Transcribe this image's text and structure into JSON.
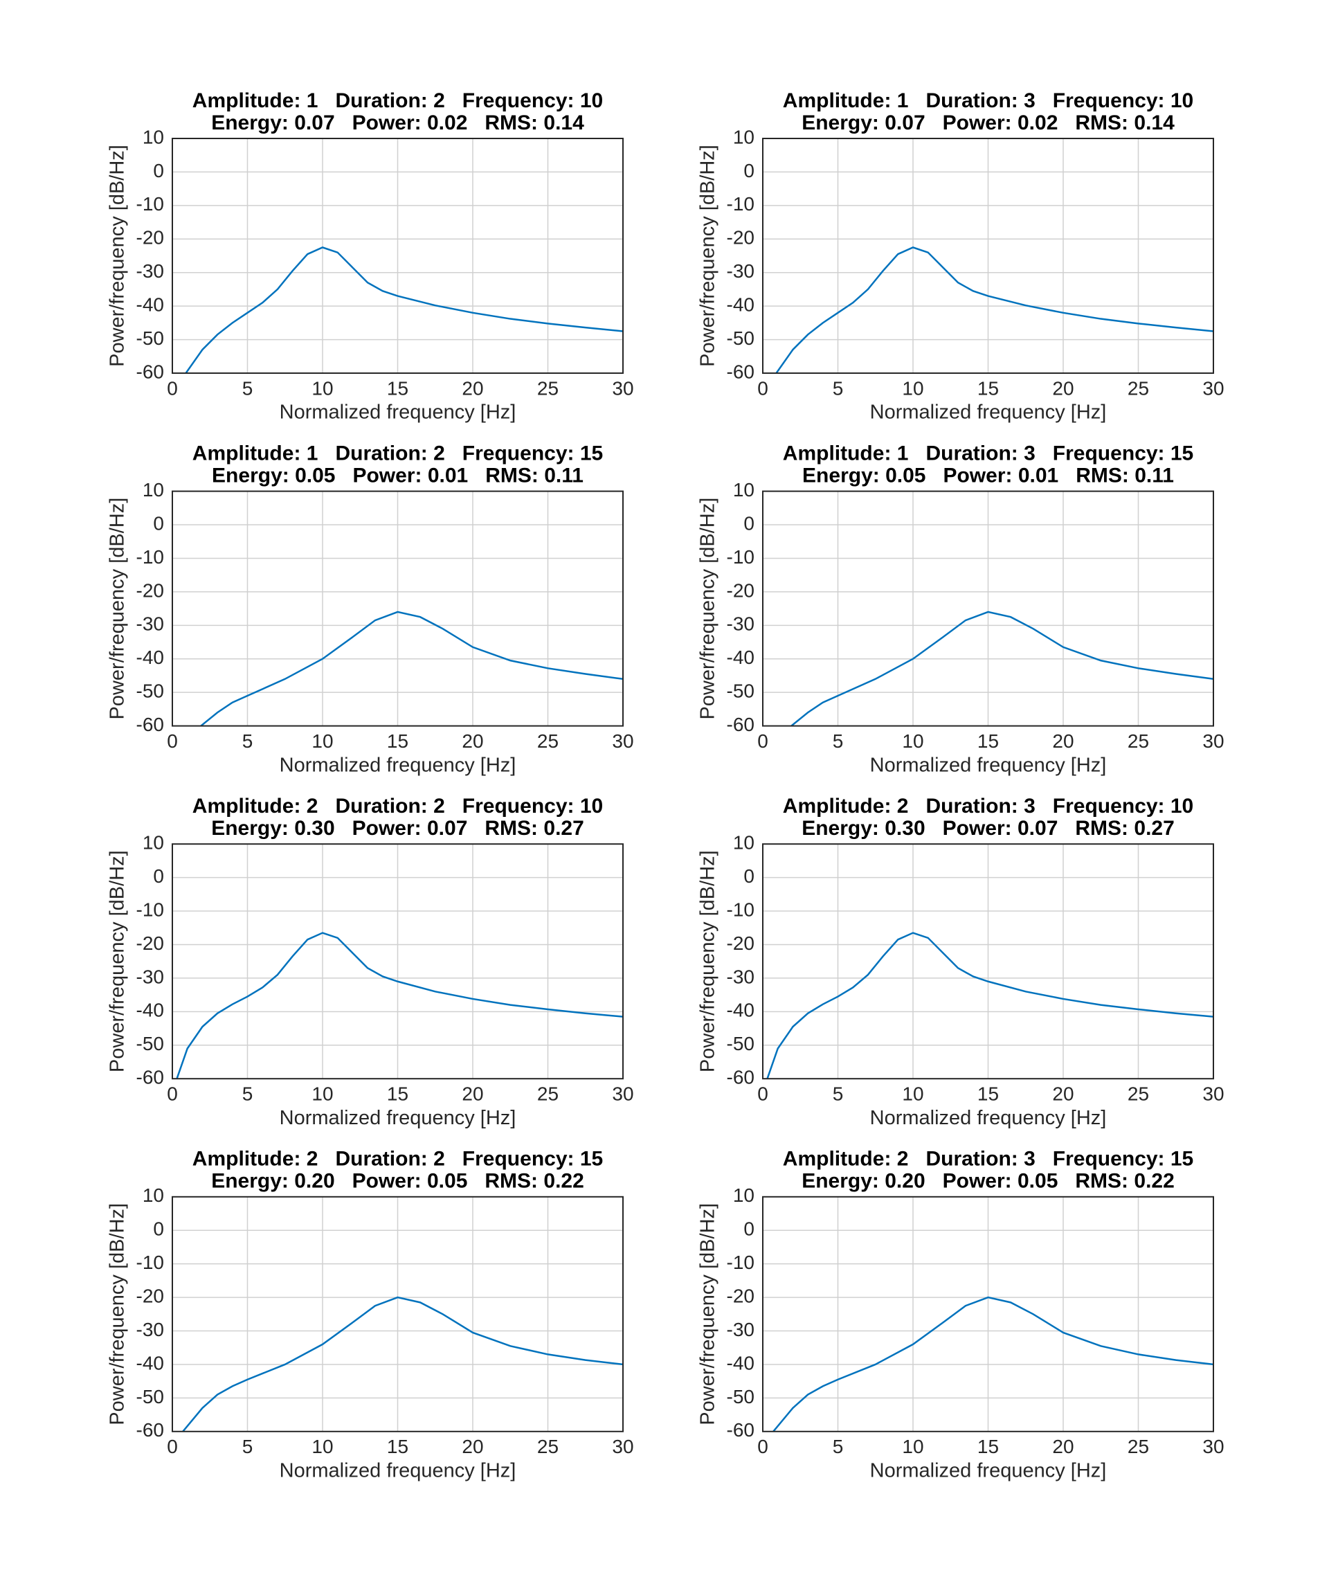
{
  "chart_data": [
    {
      "type": "line",
      "title": [
        "Amplitude: 1   Duration: 2   Frequency: 10",
        "Energy: 0.07   Power: 0.02   RMS: 0.14"
      ],
      "x_label": "Normalized frequency [Hz]",
      "y_label": "Power/frequency [dB/Hz]",
      "xlim": [
        0,
        30
      ],
      "ylim": [
        -60,
        10
      ],
      "xticks": [
        0,
        5,
        10,
        15,
        20,
        25,
        30
      ],
      "yticks": [
        -60,
        -50,
        -40,
        -30,
        -20,
        -10,
        0,
        10
      ],
      "grid": true,
      "color": "#0072bd",
      "x": [
        0.9,
        2,
        3,
        4,
        5,
        6,
        7,
        8,
        9,
        10,
        11,
        12,
        13,
        14,
        15,
        17.5,
        20,
        22.5,
        25,
        27.5,
        30
      ],
      "values": [
        -60,
        -53,
        -48.5,
        -45,
        -42,
        -39,
        -35,
        -29.5,
        -24.5,
        -22.5,
        -24,
        -28.5,
        -33,
        -35.5,
        -37,
        -39.8,
        -42,
        -43.8,
        -45.2,
        -46.4,
        -47.5
      ]
    },
    {
      "type": "line",
      "title": [
        "Amplitude: 1   Duration: 3   Frequency: 10",
        "Energy: 0.07   Power: 0.02   RMS: 0.14"
      ],
      "x_label": "Normalized frequency [Hz]",
      "y_label": "Power/frequency [dB/Hz]",
      "xlim": [
        0,
        30
      ],
      "ylim": [
        -60,
        10
      ],
      "xticks": [
        0,
        5,
        10,
        15,
        20,
        25,
        30
      ],
      "yticks": [
        -60,
        -50,
        -40,
        -30,
        -20,
        -10,
        0,
        10
      ],
      "grid": true,
      "color": "#0072bd",
      "x": [
        0.9,
        2,
        3,
        4,
        5,
        6,
        7,
        8,
        9,
        10,
        11,
        12,
        13,
        14,
        15,
        17.5,
        20,
        22.5,
        25,
        27.5,
        30
      ],
      "values": [
        -60,
        -53,
        -48.5,
        -45,
        -42,
        -39,
        -35,
        -29.5,
        -24.5,
        -22.5,
        -24,
        -28.5,
        -33,
        -35.5,
        -37,
        -39.8,
        -42,
        -43.8,
        -45.2,
        -46.4,
        -47.5
      ]
    },
    {
      "type": "line",
      "title": [
        "Amplitude: 1   Duration: 2   Frequency: 15",
        "Energy: 0.05   Power: 0.01   RMS: 0.11"
      ],
      "x_label": "Normalized frequency [Hz]",
      "y_label": "Power/frequency [dB/Hz]",
      "xlim": [
        0,
        30
      ],
      "ylim": [
        -60,
        10
      ],
      "xticks": [
        0,
        5,
        10,
        15,
        20,
        25,
        30
      ],
      "yticks": [
        -60,
        -50,
        -40,
        -30,
        -20,
        -10,
        0,
        10
      ],
      "grid": true,
      "color": "#0072bd",
      "x": [
        1.9,
        3,
        4,
        5,
        7.5,
        10,
        12,
        13.5,
        15,
        16.5,
        18,
        20,
        22.5,
        25,
        27.5,
        30
      ],
      "values": [
        -60,
        -56,
        -53,
        -51,
        -46,
        -40,
        -33.5,
        -28.5,
        -26,
        -27.5,
        -31,
        -36.5,
        -40.5,
        -42.8,
        -44.5,
        -46
      ]
    },
    {
      "type": "line",
      "title": [
        "Amplitude: 1   Duration: 3   Frequency: 15",
        "Energy: 0.05   Power: 0.01   RMS: 0.11"
      ],
      "x_label": "Normalized frequency [Hz]",
      "y_label": "Power/frequency [dB/Hz]",
      "xlim": [
        0,
        30
      ],
      "ylim": [
        -60,
        10
      ],
      "xticks": [
        0,
        5,
        10,
        15,
        20,
        25,
        30
      ],
      "yticks": [
        -60,
        -50,
        -40,
        -30,
        -20,
        -10,
        0,
        10
      ],
      "grid": true,
      "color": "#0072bd",
      "x": [
        1.9,
        3,
        4,
        5,
        7.5,
        10,
        12,
        13.5,
        15,
        16.5,
        18,
        20,
        22.5,
        25,
        27.5,
        30
      ],
      "values": [
        -60,
        -56,
        -53,
        -51,
        -46,
        -40,
        -33.5,
        -28.5,
        -26,
        -27.5,
        -31,
        -36.5,
        -40.5,
        -42.8,
        -44.5,
        -46
      ]
    },
    {
      "type": "line",
      "title": [
        "Amplitude: 2   Duration: 2   Frequency: 10",
        "Energy: 0.30   Power: 0.07   RMS: 0.27"
      ],
      "x_label": "Normalized frequency [Hz]",
      "y_label": "Power/frequency [dB/Hz]",
      "xlim": [
        0,
        30
      ],
      "ylim": [
        -60,
        10
      ],
      "xticks": [
        0,
        5,
        10,
        15,
        20,
        25,
        30
      ],
      "yticks": [
        -60,
        -50,
        -40,
        -30,
        -20,
        -10,
        0,
        10
      ],
      "grid": true,
      "color": "#0072bd",
      "x": [
        0.3,
        1,
        2,
        3,
        4,
        5,
        6,
        7,
        8,
        9,
        10,
        11,
        12,
        13,
        14,
        15,
        17.5,
        20,
        22.5,
        25,
        27.5,
        30
      ],
      "values": [
        -60,
        -51,
        -44.5,
        -40.5,
        -37.8,
        -35.5,
        -32.8,
        -29,
        -23.5,
        -18.5,
        -16.5,
        -18,
        -22.5,
        -27,
        -29.5,
        -31,
        -34,
        -36.2,
        -38,
        -39.3,
        -40.5,
        -41.5
      ]
    },
    {
      "type": "line",
      "title": [
        "Amplitude: 2   Duration: 3   Frequency: 10",
        "Energy: 0.30   Power: 0.07   RMS: 0.27"
      ],
      "x_label": "Normalized frequency [Hz]",
      "y_label": "Power/frequency [dB/Hz]",
      "xlim": [
        0,
        30
      ],
      "ylim": [
        -60,
        10
      ],
      "xticks": [
        0,
        5,
        10,
        15,
        20,
        25,
        30
      ],
      "yticks": [
        -60,
        -50,
        -40,
        -30,
        -20,
        -10,
        0,
        10
      ],
      "grid": true,
      "color": "#0072bd",
      "x": [
        0.3,
        1,
        2,
        3,
        4,
        5,
        6,
        7,
        8,
        9,
        10,
        11,
        12,
        13,
        14,
        15,
        17.5,
        20,
        22.5,
        25,
        27.5,
        30
      ],
      "values": [
        -60,
        -51,
        -44.5,
        -40.5,
        -37.8,
        -35.5,
        -32.8,
        -29,
        -23.5,
        -18.5,
        -16.5,
        -18,
        -22.5,
        -27,
        -29.5,
        -31,
        -34,
        -36.2,
        -38,
        -39.3,
        -40.5,
        -41.5
      ]
    },
    {
      "type": "line",
      "title": [
        "Amplitude: 2   Duration: 2   Frequency: 15",
        "Energy: 0.20   Power: 0.05   RMS: 0.22"
      ],
      "x_label": "Normalized frequency [Hz]",
      "y_label": "Power/frequency [dB/Hz]",
      "xlim": [
        0,
        30
      ],
      "ylim": [
        -60,
        10
      ],
      "xticks": [
        0,
        5,
        10,
        15,
        20,
        25,
        30
      ],
      "yticks": [
        -60,
        -50,
        -40,
        -30,
        -20,
        -10,
        0,
        10
      ],
      "grid": true,
      "color": "#0072bd",
      "x": [
        0.7,
        2,
        3,
        4,
        5,
        7.5,
        10,
        12,
        13.5,
        15,
        16.5,
        18,
        20,
        22.5,
        25,
        27.5,
        30
      ],
      "values": [
        -60,
        -53,
        -49,
        -46.5,
        -44.5,
        -40,
        -34,
        -27.5,
        -22.5,
        -20,
        -21.5,
        -25,
        -30.5,
        -34.5,
        -37,
        -38.7,
        -40
      ]
    },
    {
      "type": "line",
      "title": [
        "Amplitude: 2   Duration: 3   Frequency: 15",
        "Energy: 0.20   Power: 0.05   RMS: 0.22"
      ],
      "x_label": "Normalized frequency [Hz]",
      "y_label": "Power/frequency [dB/Hz]",
      "xlim": [
        0,
        30
      ],
      "ylim": [
        -60,
        10
      ],
      "xticks": [
        0,
        5,
        10,
        15,
        20,
        25,
        30
      ],
      "yticks": [
        -60,
        -50,
        -40,
        -30,
        -20,
        -10,
        0,
        10
      ],
      "grid": true,
      "color": "#0072bd",
      "x": [
        0.7,
        2,
        3,
        4,
        5,
        7.5,
        10,
        12,
        13.5,
        15,
        16.5,
        18,
        20,
        22.5,
        25,
        27.5,
        30
      ],
      "values": [
        -60,
        -53,
        -49,
        -46.5,
        -44.5,
        -40,
        -34,
        -27.5,
        -22.5,
        -20,
        -21.5,
        -25,
        -30.5,
        -34.5,
        -37,
        -38.7,
        -40
      ]
    }
  ]
}
